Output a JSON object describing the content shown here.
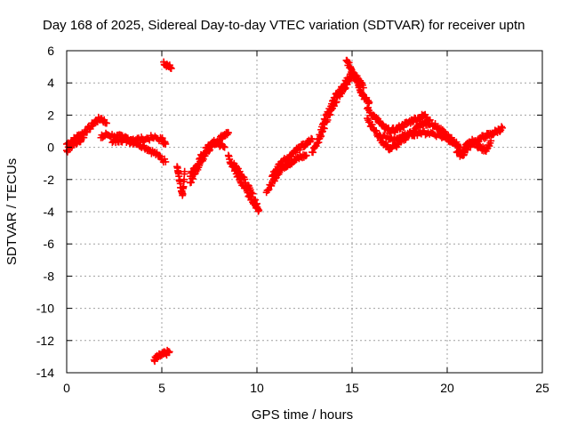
{
  "chart_data": {
    "type": "scatter",
    "title": "Day 168 of 2025, Sidereal Day-to-day VTEC variation (SDTVAR) for receiver uptn",
    "xlabel": "GPS time / hours",
    "ylabel": "SDTVAR / TECUs",
    "xlim": [
      0,
      25
    ],
    "ylim": [
      -14,
      6
    ],
    "xticks": [
      0,
      5,
      10,
      15,
      20,
      25
    ],
    "yticks": [
      -14,
      -12,
      -10,
      -8,
      -6,
      -4,
      -2,
      0,
      2,
      4,
      6
    ],
    "grid": true,
    "marker": "+",
    "color": "#ff0000",
    "series": [
      {
        "name": "SDTVAR",
        "segments": [
          {
            "x": [
              0.0,
              0.3,
              0.6,
              0.9,
              1.2,
              1.5,
              1.8,
              2.1
            ],
            "y": [
              0.2,
              0.4,
              0.7,
              0.9,
              1.2,
              1.6,
              1.8,
              1.5
            ]
          },
          {
            "x": [
              0.0,
              0.3,
              0.6,
              0.9
            ],
            "y": [
              -0.2,
              0.1,
              0.4,
              0.6
            ]
          },
          {
            "x": [
              1.8,
              2.1,
              2.5,
              3.0,
              3.5,
              4.0,
              4.5,
              5.0,
              5.2
            ],
            "y": [
              0.6,
              0.8,
              0.7,
              0.6,
              0.5,
              0.5,
              0.6,
              0.5,
              0.2
            ]
          },
          {
            "x": [
              2.4,
              2.8,
              3.2,
              3.6,
              4.0,
              4.4,
              4.8,
              5.2
            ],
            "y": [
              0.3,
              0.5,
              0.4,
              0.3,
              0.1,
              -0.2,
              -0.5,
              -0.9
            ]
          },
          {
            "x": [
              5.1,
              5.3,
              5.5
            ],
            "y": [
              5.3,
              5.1,
              4.9
            ]
          },
          {
            "x": [
              4.6,
              4.8,
              5.0,
              5.2,
              5.4
            ],
            "y": [
              -13.2,
              -13.0,
              -12.9,
              -12.8,
              -12.7
            ]
          },
          {
            "x": [
              5.8,
              5.9,
              6.0,
              6.1,
              6.2
            ],
            "y": [
              -1.2,
              -1.8,
              -2.5,
              -2.9,
              -1.5
            ]
          },
          {
            "x": [
              6.5,
              6.8,
              7.1,
              7.4,
              7.7,
              8.0,
              8.3,
              8.5
            ],
            "y": [
              -2.2,
              -1.5,
              -0.8,
              -0.2,
              0.2,
              0.5,
              0.8,
              0.9
            ]
          },
          {
            "x": [
              6.5,
              6.8,
              7.1,
              7.4,
              7.7,
              8.0,
              8.3
            ],
            "y": [
              -1.8,
              -1.2,
              -0.5,
              0.0,
              0.3,
              0.2,
              0.0
            ]
          },
          {
            "x": [
              8.5,
              8.7,
              9.0,
              9.3,
              9.6,
              9.9,
              10.1
            ],
            "y": [
              -0.5,
              -1.2,
              -1.8,
              -2.4,
              -3.0,
              -3.6,
              -3.9
            ]
          },
          {
            "x": [
              8.8,
              9.1,
              9.4,
              9.7,
              10.0
            ],
            "y": [
              -1.0,
              -1.5,
              -2.2,
              -2.8,
              -3.5
            ]
          },
          {
            "x": [
              10.5,
              10.8,
              11.1,
              11.4,
              11.7,
              12.0,
              12.3,
              12.6
            ],
            "y": [
              -2.8,
              -2.2,
              -1.6,
              -1.2,
              -1.0,
              -0.8,
              -0.6,
              -0.5
            ]
          },
          {
            "x": [
              10.8,
              11.1,
              11.4,
              11.7,
              12.0,
              12.3,
              12.6,
              12.9
            ],
            "y": [
              -1.8,
              -1.2,
              -0.8,
              -0.6,
              -0.2,
              0.0,
              0.2,
              0.5
            ]
          },
          {
            "x": [
              12.9,
              13.2,
              13.5,
              13.8,
              14.1,
              14.4,
              14.7,
              15.0
            ],
            "y": [
              -0.3,
              0.3,
              1.2,
              2.0,
              2.8,
              3.4,
              3.9,
              4.5
            ]
          },
          {
            "x": [
              13.2,
              13.5,
              13.8,
              14.1,
              14.4,
              14.7,
              15.0,
              15.3,
              15.6
            ],
            "y": [
              0.5,
              1.5,
              2.4,
              3.1,
              3.6,
              4.1,
              4.6,
              4.3,
              3.7
            ]
          },
          {
            "x": [
              14.7,
              14.9,
              15.1,
              15.3,
              15.5,
              15.7,
              15.9
            ],
            "y": [
              5.4,
              5.0,
              4.6,
              4.0,
              3.4,
              3.0,
              2.8
            ]
          },
          {
            "x": [
              15.8,
              16.1,
              16.4,
              16.7,
              17.0,
              17.3,
              17.6,
              17.9,
              18.2,
              18.5,
              18.8,
              19.1
            ],
            "y": [
              2.4,
              2.0,
              1.6,
              1.2,
              1.0,
              1.1,
              1.3,
              1.5,
              1.7,
              1.8,
              2.0,
              1.7
            ]
          },
          {
            "x": [
              15.8,
              16.1,
              16.4,
              16.7,
              17.0,
              17.3,
              17.6,
              17.9,
              18.2,
              18.5,
              18.8,
              19.1
            ],
            "y": [
              1.8,
              1.2,
              0.7,
              0.2,
              -0.1,
              0.1,
              0.4,
              0.7,
              1.0,
              1.3,
              1.5,
              1.4
            ]
          },
          {
            "x": [
              16.5,
              17.0,
              17.5,
              18.0,
              18.5,
              19.0,
              19.5,
              20.0,
              20.5
            ],
            "y": [
              0.7,
              0.5,
              0.6,
              0.8,
              0.9,
              0.9,
              0.8,
              0.5,
              0.2
            ]
          },
          {
            "x": [
              19.2,
              19.5,
              19.8,
              20.1,
              20.4,
              20.7
            ],
            "y": [
              1.5,
              1.2,
              0.9,
              0.6,
              0.3,
              0.0
            ]
          },
          {
            "x": [
              20.5,
              20.8,
              21.1,
              21.4,
              21.7,
              22.0,
              22.3,
              22.6,
              22.9
            ],
            "y": [
              -0.3,
              -0.5,
              0.0,
              0.3,
              0.5,
              0.7,
              0.8,
              1.0,
              1.2
            ]
          },
          {
            "x": [
              20.8,
              21.1,
              21.4,
              21.7,
              22.0,
              22.3
            ],
            "y": [
              -0.2,
              0.2,
              0.4,
              0.0,
              -0.2,
              0.4
            ]
          }
        ]
      }
    ]
  }
}
